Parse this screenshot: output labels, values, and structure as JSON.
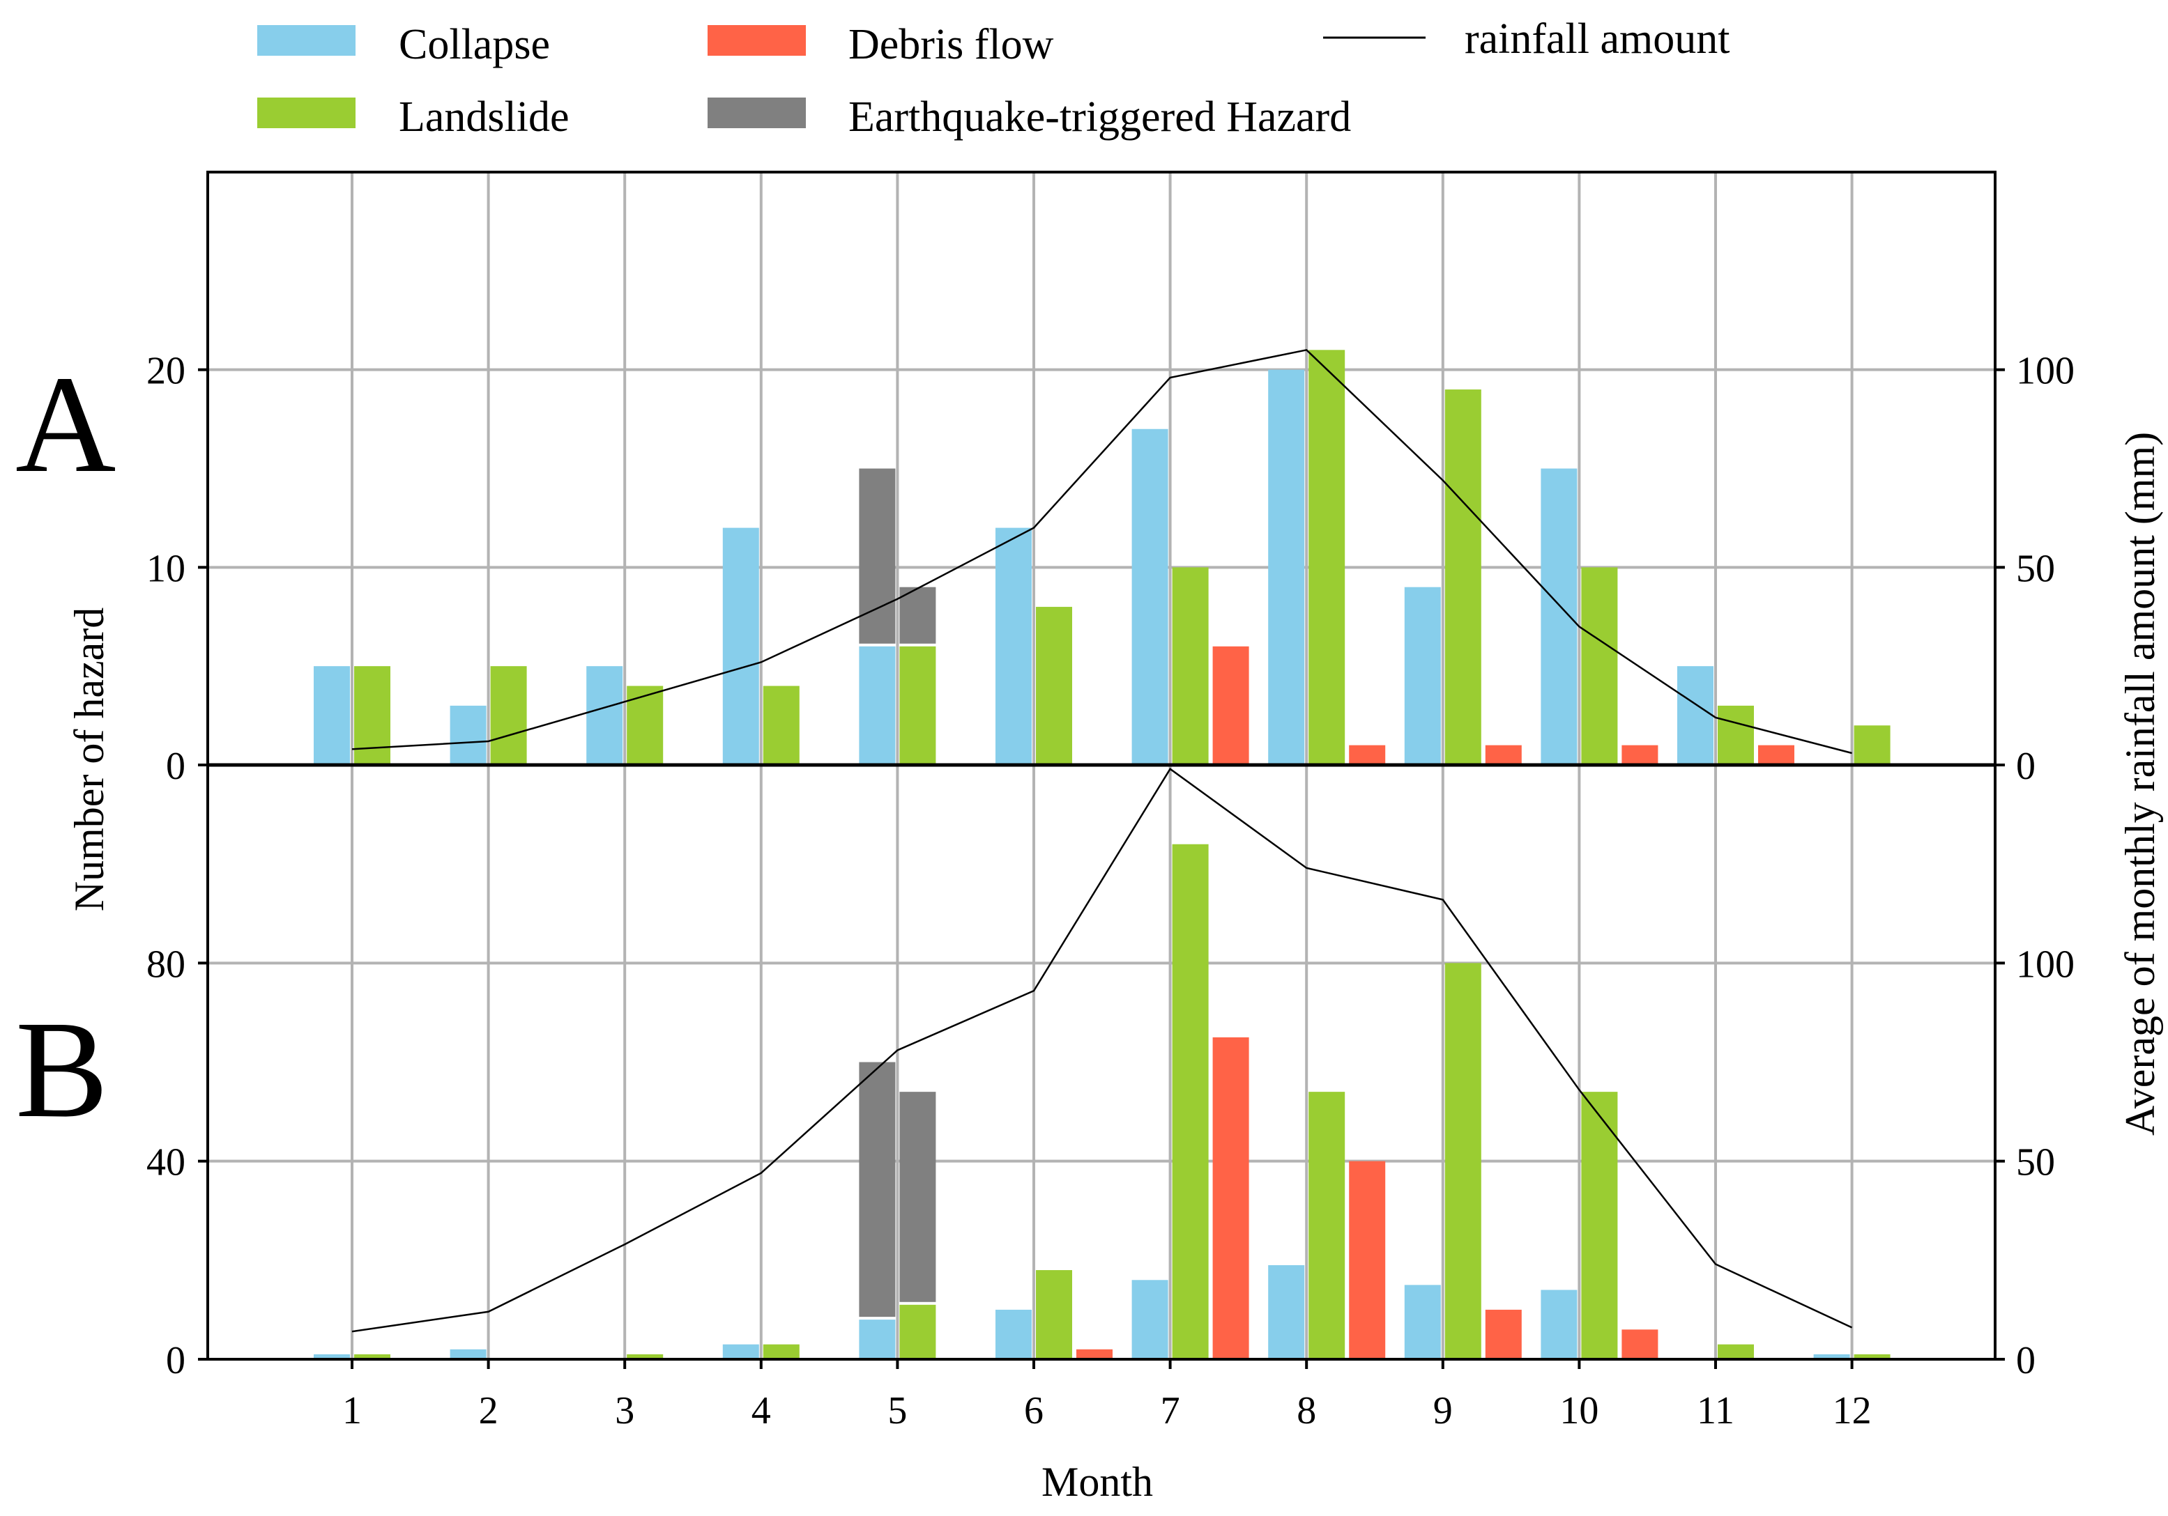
{
  "chart_data": {
    "type": "bar",
    "xlabel": "Month",
    "ylabel_left": "Number of hazard",
    "ylabel_right": "Average of monthly rainfall amount (mm)",
    "categories": [
      "1",
      "2",
      "3",
      "4",
      "5",
      "6",
      "7",
      "8",
      "9",
      "10",
      "11",
      "12"
    ],
    "legend": [
      {
        "key": "collapse",
        "label": "Collapse",
        "color": "#87ceeb",
        "kind": "bar"
      },
      {
        "key": "debris",
        "label": "Debris flow",
        "color": "#ff6347",
        "kind": "bar"
      },
      {
        "key": "rain",
        "label": "rainfall amount",
        "color": "#000000",
        "kind": "line"
      },
      {
        "key": "landslide",
        "label": "Landslide",
        "color": "#9acd32",
        "kind": "bar"
      },
      {
        "key": "eq",
        "label": "Earthquake-triggered Hazard",
        "color": "#808080",
        "kind": "bar"
      }
    ],
    "panels": [
      {
        "letter": "A",
        "ylim": [
          0,
          30
        ],
        "y_ticks": [
          0,
          10,
          20
        ],
        "y2lim": [
          0,
          150
        ],
        "y2_ticks": [
          0,
          50,
          100
        ],
        "series": {
          "collapse": [
            5,
            3,
            5,
            12,
            6,
            12,
            17,
            20,
            9,
            15,
            5,
            0
          ],
          "landslide": [
            5,
            5,
            4,
            4,
            6,
            8,
            10,
            21,
            19,
            10,
            3,
            2
          ],
          "debris": [
            0,
            0,
            0,
            0,
            0,
            0,
            6,
            1,
            1,
            1,
            1,
            0
          ],
          "eq_collapse_stack": 9,
          "eq_landslide_stack": 3
        },
        "rainfall": [
          4,
          6,
          16,
          26,
          42,
          60,
          98,
          105,
          72,
          35,
          12,
          3
        ]
      },
      {
        "letter": "B",
        "ylim": [
          0,
          120
        ],
        "y_ticks": [
          0,
          40,
          80
        ],
        "y2lim": [
          0,
          150
        ],
        "y2_ticks": [
          0,
          50,
          100
        ],
        "series": {
          "collapse": [
            1,
            2,
            0,
            3,
            8,
            10,
            16,
            19,
            15,
            14,
            0,
            1
          ],
          "landslide": [
            1,
            0,
            1,
            3,
            11,
            18,
            104,
            54,
            80,
            54,
            3,
            1
          ],
          "debris": [
            0,
            0,
            0,
            0,
            0,
            2,
            65,
            40,
            10,
            6,
            0,
            0
          ],
          "eq_collapse_stack": 52,
          "eq_landslide_stack": 43
        },
        "rainfall": [
          7,
          12,
          29,
          47,
          78,
          93,
          149,
          124,
          116,
          68,
          24,
          8
        ]
      }
    ]
  }
}
